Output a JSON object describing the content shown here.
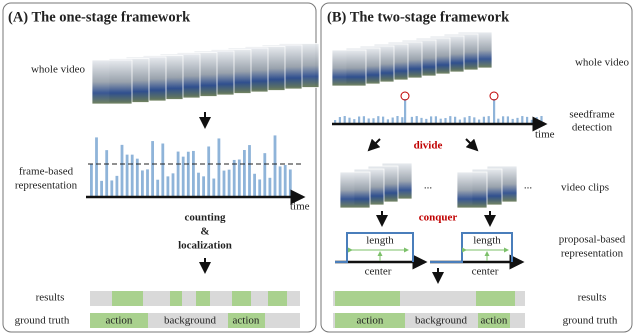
{
  "panel_a": {
    "title": "(A)  The one-stage framework",
    "whole_video": "whole video",
    "representation": [
      "frame-based",
      "representation"
    ],
    "time": "time",
    "step": [
      "counting",
      "&",
      "localization"
    ],
    "results": "results",
    "ground_truth": "ground truth",
    "gt_labels": [
      "action",
      "background",
      "action"
    ]
  },
  "panel_b": {
    "title": "(B)  The two-stage framework",
    "whole_video": "whole video",
    "detection": [
      "seedframe",
      "detection"
    ],
    "time": "time",
    "divide": "divide",
    "video_clips": "video clips",
    "ellipsis": [
      "...",
      "..."
    ],
    "conquer": "conquer",
    "length": [
      "length",
      "length"
    ],
    "center": [
      "center",
      "center"
    ],
    "representation": [
      "proposal-based",
      "representation"
    ],
    "results": "results",
    "ground_truth": "ground truth",
    "gt_labels": [
      "action",
      "background",
      "action"
    ]
  }
}
